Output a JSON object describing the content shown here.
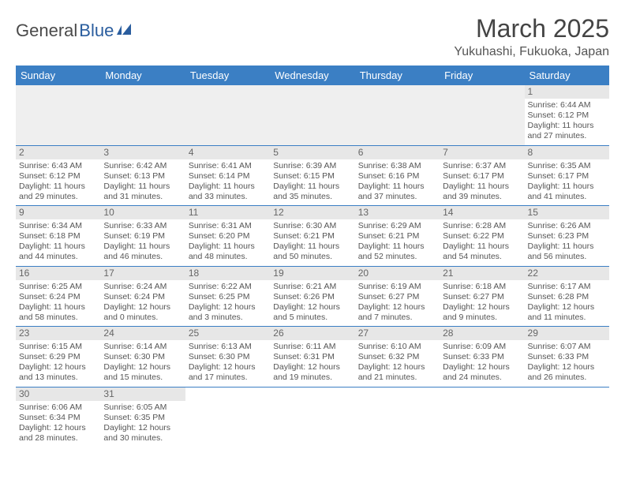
{
  "logo": {
    "text1": "General",
    "text2": "Blue"
  },
  "title": "March 2025",
  "location": "Yukuhashi, Fukuoka, Japan",
  "colors": {
    "header_bg": "#3b7fc4",
    "row_border": "#3b7fc4",
    "daynum_bg": "#e7e7e7",
    "blank_bg": "#efefef"
  },
  "weekdays": [
    "Sunday",
    "Monday",
    "Tuesday",
    "Wednesday",
    "Thursday",
    "Friday",
    "Saturday"
  ],
  "leading_blanks": 6,
  "days": [
    {
      "n": "1",
      "sunrise": "Sunrise: 6:44 AM",
      "sunset": "Sunset: 6:12 PM",
      "daylight": "Daylight: 11 hours and 27 minutes."
    },
    {
      "n": "2",
      "sunrise": "Sunrise: 6:43 AM",
      "sunset": "Sunset: 6:12 PM",
      "daylight": "Daylight: 11 hours and 29 minutes."
    },
    {
      "n": "3",
      "sunrise": "Sunrise: 6:42 AM",
      "sunset": "Sunset: 6:13 PM",
      "daylight": "Daylight: 11 hours and 31 minutes."
    },
    {
      "n": "4",
      "sunrise": "Sunrise: 6:41 AM",
      "sunset": "Sunset: 6:14 PM",
      "daylight": "Daylight: 11 hours and 33 minutes."
    },
    {
      "n": "5",
      "sunrise": "Sunrise: 6:39 AM",
      "sunset": "Sunset: 6:15 PM",
      "daylight": "Daylight: 11 hours and 35 minutes."
    },
    {
      "n": "6",
      "sunrise": "Sunrise: 6:38 AM",
      "sunset": "Sunset: 6:16 PM",
      "daylight": "Daylight: 11 hours and 37 minutes."
    },
    {
      "n": "7",
      "sunrise": "Sunrise: 6:37 AM",
      "sunset": "Sunset: 6:17 PM",
      "daylight": "Daylight: 11 hours and 39 minutes."
    },
    {
      "n": "8",
      "sunrise": "Sunrise: 6:35 AM",
      "sunset": "Sunset: 6:17 PM",
      "daylight": "Daylight: 11 hours and 41 minutes."
    },
    {
      "n": "9",
      "sunrise": "Sunrise: 6:34 AM",
      "sunset": "Sunset: 6:18 PM",
      "daylight": "Daylight: 11 hours and 44 minutes."
    },
    {
      "n": "10",
      "sunrise": "Sunrise: 6:33 AM",
      "sunset": "Sunset: 6:19 PM",
      "daylight": "Daylight: 11 hours and 46 minutes."
    },
    {
      "n": "11",
      "sunrise": "Sunrise: 6:31 AM",
      "sunset": "Sunset: 6:20 PM",
      "daylight": "Daylight: 11 hours and 48 minutes."
    },
    {
      "n": "12",
      "sunrise": "Sunrise: 6:30 AM",
      "sunset": "Sunset: 6:21 PM",
      "daylight": "Daylight: 11 hours and 50 minutes."
    },
    {
      "n": "13",
      "sunrise": "Sunrise: 6:29 AM",
      "sunset": "Sunset: 6:21 PM",
      "daylight": "Daylight: 11 hours and 52 minutes."
    },
    {
      "n": "14",
      "sunrise": "Sunrise: 6:28 AM",
      "sunset": "Sunset: 6:22 PM",
      "daylight": "Daylight: 11 hours and 54 minutes."
    },
    {
      "n": "15",
      "sunrise": "Sunrise: 6:26 AM",
      "sunset": "Sunset: 6:23 PM",
      "daylight": "Daylight: 11 hours and 56 minutes."
    },
    {
      "n": "16",
      "sunrise": "Sunrise: 6:25 AM",
      "sunset": "Sunset: 6:24 PM",
      "daylight": "Daylight: 11 hours and 58 minutes."
    },
    {
      "n": "17",
      "sunrise": "Sunrise: 6:24 AM",
      "sunset": "Sunset: 6:24 PM",
      "daylight": "Daylight: 12 hours and 0 minutes."
    },
    {
      "n": "18",
      "sunrise": "Sunrise: 6:22 AM",
      "sunset": "Sunset: 6:25 PM",
      "daylight": "Daylight: 12 hours and 3 minutes."
    },
    {
      "n": "19",
      "sunrise": "Sunrise: 6:21 AM",
      "sunset": "Sunset: 6:26 PM",
      "daylight": "Daylight: 12 hours and 5 minutes."
    },
    {
      "n": "20",
      "sunrise": "Sunrise: 6:19 AM",
      "sunset": "Sunset: 6:27 PM",
      "daylight": "Daylight: 12 hours and 7 minutes."
    },
    {
      "n": "21",
      "sunrise": "Sunrise: 6:18 AM",
      "sunset": "Sunset: 6:27 PM",
      "daylight": "Daylight: 12 hours and 9 minutes."
    },
    {
      "n": "22",
      "sunrise": "Sunrise: 6:17 AM",
      "sunset": "Sunset: 6:28 PM",
      "daylight": "Daylight: 12 hours and 11 minutes."
    },
    {
      "n": "23",
      "sunrise": "Sunrise: 6:15 AM",
      "sunset": "Sunset: 6:29 PM",
      "daylight": "Daylight: 12 hours and 13 minutes."
    },
    {
      "n": "24",
      "sunrise": "Sunrise: 6:14 AM",
      "sunset": "Sunset: 6:30 PM",
      "daylight": "Daylight: 12 hours and 15 minutes."
    },
    {
      "n": "25",
      "sunrise": "Sunrise: 6:13 AM",
      "sunset": "Sunset: 6:30 PM",
      "daylight": "Daylight: 12 hours and 17 minutes."
    },
    {
      "n": "26",
      "sunrise": "Sunrise: 6:11 AM",
      "sunset": "Sunset: 6:31 PM",
      "daylight": "Daylight: 12 hours and 19 minutes."
    },
    {
      "n": "27",
      "sunrise": "Sunrise: 6:10 AM",
      "sunset": "Sunset: 6:32 PM",
      "daylight": "Daylight: 12 hours and 21 minutes."
    },
    {
      "n": "28",
      "sunrise": "Sunrise: 6:09 AM",
      "sunset": "Sunset: 6:33 PM",
      "daylight": "Daylight: 12 hours and 24 minutes."
    },
    {
      "n": "29",
      "sunrise": "Sunrise: 6:07 AM",
      "sunset": "Sunset: 6:33 PM",
      "daylight": "Daylight: 12 hours and 26 minutes."
    },
    {
      "n": "30",
      "sunrise": "Sunrise: 6:06 AM",
      "sunset": "Sunset: 6:34 PM",
      "daylight": "Daylight: 12 hours and 28 minutes."
    },
    {
      "n": "31",
      "sunrise": "Sunrise: 6:05 AM",
      "sunset": "Sunset: 6:35 PM",
      "daylight": "Daylight: 12 hours and 30 minutes."
    }
  ]
}
